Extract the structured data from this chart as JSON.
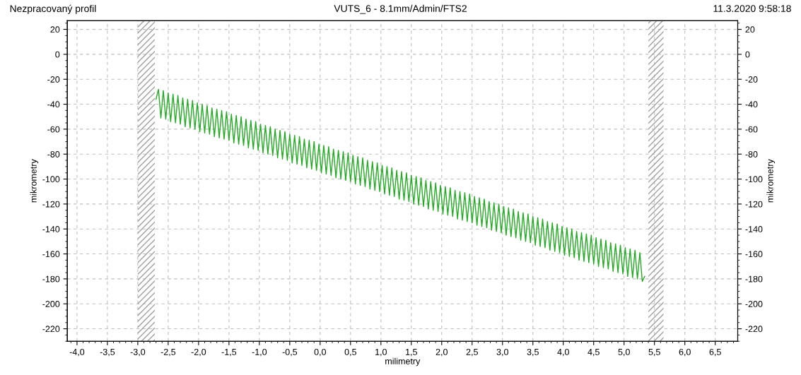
{
  "chart_data": {
    "type": "line",
    "title": "VUTS_6 - 8.1mm/Admin/FTS2",
    "annotations": [
      "Nezpracovaný profil",
      "11.3.2020 9:58:18"
    ],
    "xlabel": "milimetry",
    "ylabel": "mikrometry",
    "y2label": "mikrometry",
    "xlim": [
      -4.16,
      6.87
    ],
    "ylim": [
      -230,
      27
    ],
    "y2lim": [
      -230,
      27
    ],
    "xticks": [
      {
        "value": -4.0,
        "label": "-4,0"
      },
      {
        "value": -3.5,
        "label": "-3,5"
      },
      {
        "value": -3.0,
        "label": "-3,0"
      },
      {
        "value": -2.5,
        "label": "-2,5"
      },
      {
        "value": -2.0,
        "label": "-2,0"
      },
      {
        "value": -1.5,
        "label": "-1,5"
      },
      {
        "value": -1.0,
        "label": "-1,0"
      },
      {
        "value": -0.5,
        "label": "-0,5"
      },
      {
        "value": 0.0,
        "label": "0,0"
      },
      {
        "value": 0.5,
        "label": "0,5"
      },
      {
        "value": 1.0,
        "label": "1,0"
      },
      {
        "value": 1.5,
        "label": "1,5"
      },
      {
        "value": 2.0,
        "label": "2,0"
      },
      {
        "value": 2.5,
        "label": "2,5"
      },
      {
        "value": 3.0,
        "label": "3,0"
      },
      {
        "value": 3.5,
        "label": "3,5"
      },
      {
        "value": 4.0,
        "label": "4,0"
      },
      {
        "value": 4.5,
        "label": "4,5"
      },
      {
        "value": 5.0,
        "label": "5,0"
      },
      {
        "value": 5.5,
        "label": "5,5"
      },
      {
        "value": 6.0,
        "label": "6,0"
      },
      {
        "value": 6.5,
        "label": "6,5"
      }
    ],
    "yticks": [
      20,
      0,
      -20,
      -40,
      -60,
      -80,
      -100,
      -120,
      -140,
      -160,
      -180,
      -200,
      -220
    ],
    "y2ticks": [
      20,
      0,
      -20,
      -40,
      -60,
      -80,
      -100,
      -120,
      -140,
      -160,
      -180,
      -200,
      -220
    ],
    "grid": true,
    "legend": false,
    "marker": "none",
    "line_style": "solid",
    "bands": [
      {
        "axis": "x",
        "from": -3.0,
        "to": -2.72,
        "color": "#a0a0a0"
      },
      {
        "axis": "x",
        "from": 5.4,
        "to": 5.65,
        "color": "#a0a0a0"
      }
    ],
    "series": [
      {
        "color": "#22aa22",
        "x": [
          -2.7,
          -2.66,
          -2.62,
          -2.58,
          -2.54,
          -2.5,
          -2.46,
          -2.42,
          -2.38,
          -2.34,
          -2.3,
          -2.26,
          -2.22,
          -2.18,
          -2.14,
          -2.1,
          -2.06,
          -2.02,
          -1.98,
          -1.94,
          -1.9,
          -1.86,
          -1.82,
          -1.78,
          -1.74,
          -1.7,
          -1.66,
          -1.62,
          -1.58,
          -1.54,
          -1.5,
          -1.46,
          -1.42,
          -1.38,
          -1.34,
          -1.3,
          -1.26,
          -1.22,
          -1.18,
          -1.14,
          -1.1,
          -1.06,
          -1.02,
          -0.98,
          -0.94,
          -0.9,
          -0.86,
          -0.82,
          -0.78,
          -0.74,
          -0.7,
          -0.66,
          -0.62,
          -0.58,
          -0.54,
          -0.5,
          -0.46,
          -0.42,
          -0.38,
          -0.34,
          -0.3,
          -0.26,
          -0.22,
          -0.18,
          -0.14,
          -0.1,
          -0.06,
          -0.02,
          0.02,
          0.06,
          0.1,
          0.14,
          0.18,
          0.22,
          0.26,
          0.3,
          0.34,
          0.38,
          0.42,
          0.46,
          0.5,
          0.54,
          0.58,
          0.62,
          0.66,
          0.7,
          0.74,
          0.78,
          0.82,
          0.86,
          0.9,
          0.94,
          0.98,
          1.02,
          1.06,
          1.1,
          1.14,
          1.18,
          1.22,
          1.26,
          1.3,
          1.34,
          1.38,
          1.42,
          1.46,
          1.5,
          1.54,
          1.58,
          1.62,
          1.66,
          1.7,
          1.74,
          1.78,
          1.82,
          1.86,
          1.9,
          1.94,
          1.98,
          2.02,
          2.06,
          2.1,
          2.14,
          2.18,
          2.22,
          2.26,
          2.3,
          2.34,
          2.38,
          2.42,
          2.46,
          2.5,
          2.54,
          2.58,
          2.62,
          2.66,
          2.7,
          2.74,
          2.78,
          2.82,
          2.86,
          2.9,
          2.94,
          2.98,
          3.02,
          3.06,
          3.1,
          3.14,
          3.18,
          3.22,
          3.26,
          3.3,
          3.34,
          3.38,
          3.42,
          3.46,
          3.5,
          3.54,
          3.58,
          3.62,
          3.66,
          3.7,
          3.74,
          3.78,
          3.82,
          3.86,
          3.9,
          3.94,
          3.98,
          4.02,
          4.06,
          4.1,
          4.14,
          4.18,
          4.22,
          4.26,
          4.3,
          4.34,
          4.38,
          4.42,
          4.46,
          4.5,
          4.54,
          4.58,
          4.62,
          4.66,
          4.7,
          4.74,
          4.78,
          4.82,
          4.86,
          4.9,
          4.94,
          4.98,
          5.02,
          5.06,
          5.1,
          5.14,
          5.18,
          5.22,
          5.26,
          5.3,
          5.34
        ],
        "values": [
          -36,
          -28,
          -51,
          -29,
          -52,
          -31,
          -54,
          -32,
          -55,
          -33,
          -56,
          -35,
          -58,
          -36,
          -59,
          -37,
          -60,
          -39,
          -62,
          -40,
          -63,
          -41,
          -64,
          -43,
          -66,
          -44,
          -67,
          -45,
          -68,
          -46,
          -69,
          -48,
          -71,
          -49,
          -72,
          -50,
          -73,
          -52,
          -75,
          -53,
          -76,
          -54,
          -77,
          -56,
          -79,
          -57,
          -80,
          -58,
          -81,
          -60,
          -83,
          -61,
          -84,
          -62,
          -85,
          -64,
          -87,
          -65,
          -88,
          -66,
          -89,
          -68,
          -91,
          -69,
          -92,
          -70,
          -93,
          -72,
          -95,
          -73,
          -96,
          -74,
          -97,
          -76,
          -99,
          -77,
          -100,
          -78,
          -101,
          -79,
          -102,
          -81,
          -104,
          -82,
          -105,
          -83,
          -106,
          -85,
          -108,
          -86,
          -109,
          -87,
          -110,
          -89,
          -112,
          -90,
          -113,
          -91,
          -114,
          -93,
          -116,
          -94,
          -117,
          -95,
          -118,
          -97,
          -120,
          -98,
          -121,
          -99,
          -122,
          -101,
          -124,
          -102,
          -125,
          -103,
          -126,
          -105,
          -128,
          -106,
          -129,
          -107,
          -130,
          -109,
          -132,
          -110,
          -133,
          -111,
          -134,
          -112,
          -135,
          -114,
          -137,
          -115,
          -138,
          -116,
          -139,
          -118,
          -141,
          -119,
          -142,
          -120,
          -143,
          -122,
          -145,
          -123,
          -146,
          -124,
          -147,
          -126,
          -149,
          -127,
          -150,
          -128,
          -151,
          -130,
          -153,
          -131,
          -154,
          -132,
          -155,
          -134,
          -157,
          -135,
          -158,
          -136,
          -159,
          -138,
          -161,
          -139,
          -162,
          -140,
          -163,
          -142,
          -165,
          -143,
          -166,
          -144,
          -167,
          -145,
          -168,
          -147,
          -170,
          -148,
          -171,
          -149,
          -172,
          -151,
          -174,
          -152,
          -175,
          -153,
          -176,
          -155,
          -178,
          -156,
          -179,
          -157,
          -180,
          -159,
          -182,
          -178
        ]
      }
    ]
  }
}
